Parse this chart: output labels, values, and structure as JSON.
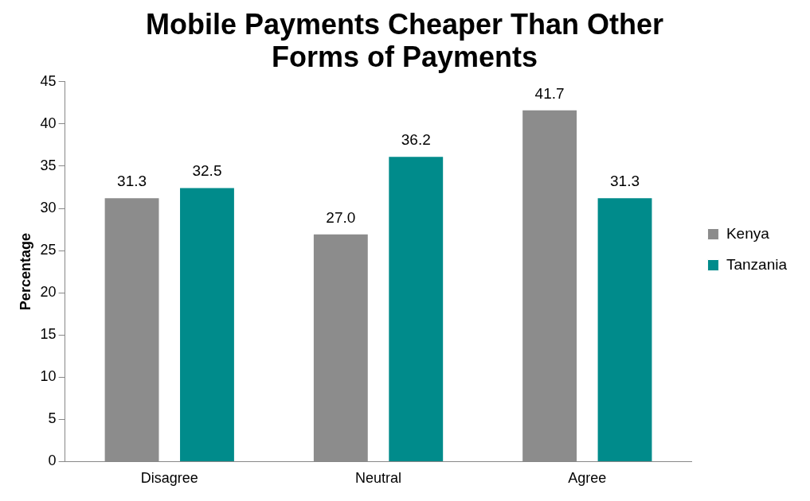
{
  "chart_data": {
    "type": "bar",
    "title": "Mobile Payments Cheaper Than Other Forms of Payments",
    "ylabel": "Percentage",
    "categories": [
      "Disagree",
      "Neutral",
      "Agree"
    ],
    "series": [
      {
        "name": "Kenya",
        "color": "#8c8c8c",
        "values": [
          31.3,
          27.0,
          41.7
        ],
        "value_labels": [
          "31.3",
          "27.0",
          "41.7"
        ]
      },
      {
        "name": "Tanzania",
        "color": "#008b8b",
        "values": [
          32.5,
          36.2,
          31.3
        ],
        "value_labels": [
          "32.5",
          "36.2",
          "31.3"
        ]
      }
    ],
    "ylim": [
      0,
      45
    ],
    "yticks": [
      0,
      5,
      10,
      15,
      20,
      25,
      30,
      35,
      40,
      45
    ],
    "grid": false,
    "legend": "right"
  }
}
